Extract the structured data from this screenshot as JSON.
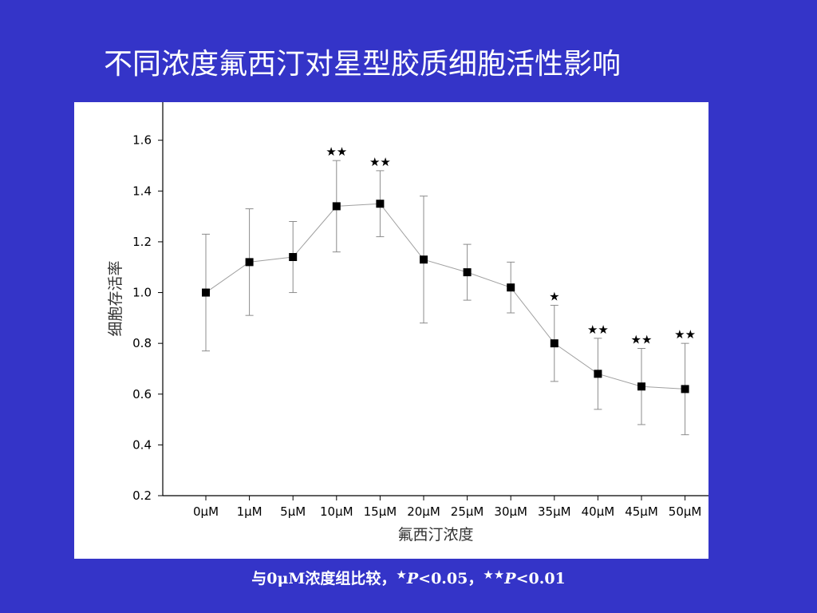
{
  "slide": {
    "title": "不同浓度氟西汀对星型胶质细胞活性影响"
  },
  "footnote": {
    "prefix": "与0μM浓度组比较，",
    "mark1": "★",
    "p_symbol1": "P",
    "threshold1": "<0.05，",
    "mark2": "★★",
    "p_symbol2": "P",
    "threshold2": "<0.01"
  },
  "chart_data": {
    "type": "line",
    "title": "",
    "xlabel": "氟西汀浓度",
    "ylabel": "细胞存活率",
    "categories": [
      "0μM",
      "1μM",
      "5μM",
      "10μM",
      "15μM",
      "20μM",
      "25μM",
      "30μM",
      "35μM",
      "40μM",
      "45μM",
      "50μM"
    ],
    "values": [
      1.0,
      1.12,
      1.14,
      1.34,
      1.35,
      1.13,
      1.08,
      1.02,
      0.8,
      0.68,
      0.63,
      0.62
    ],
    "error": [
      0.23,
      0.21,
      0.14,
      0.18,
      0.13,
      0.25,
      0.11,
      0.1,
      0.15,
      0.14,
      0.15,
      0.18
    ],
    "significance": [
      "",
      "",
      "",
      "★★",
      "★★",
      "",
      "",
      "",
      "★",
      "★★",
      "★★",
      "★★"
    ],
    "ylim": [
      0.2,
      1.75
    ],
    "yticks": [
      0.2,
      0.4,
      0.6,
      0.8,
      1.0,
      1.2,
      1.4,
      1.6
    ],
    "ytick_labels": [
      "0.2",
      "0.4",
      "0.6",
      "0.8",
      "1.0",
      "1.2",
      "1.4",
      "1.6"
    ],
    "grid": false,
    "legend": "none",
    "line_color": "#a0a0a0",
    "marker_color": "#000000"
  }
}
